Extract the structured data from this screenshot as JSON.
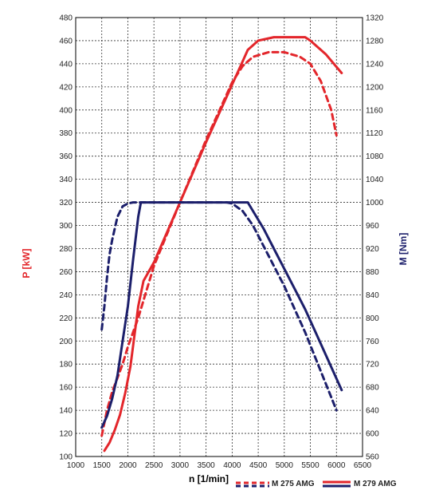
{
  "chart_data": {
    "type": "line",
    "xlabel": "n [1/min]",
    "ylabel_left": "P [kW]",
    "ylabel_right": "M [Nm]",
    "xlim": [
      1000,
      6500
    ],
    "ylim_left": [
      100,
      480
    ],
    "ylim_right": [
      560,
      1320
    ],
    "xticks": [
      1000,
      1500,
      2000,
      2500,
      3000,
      3500,
      4000,
      4500,
      5000,
      5500,
      6000,
      6500
    ],
    "yticks_left": [
      100,
      120,
      140,
      160,
      180,
      200,
      220,
      240,
      260,
      280,
      300,
      320,
      340,
      360,
      380,
      400,
      420,
      440,
      460,
      480
    ],
    "yticks_right": [
      560,
      600,
      640,
      680,
      720,
      760,
      800,
      840,
      880,
      920,
      960,
      1000,
      1040,
      1080,
      1120,
      1160,
      1200,
      1240,
      1280,
      1320
    ],
    "grid": true,
    "legend_position": "bottom-right",
    "colors": {
      "power": "#e3262b",
      "torque": "#1c1f6b"
    },
    "series": [
      {
        "name": "M 275 AMG",
        "quantity": "power",
        "axis": "left",
        "style": "dashed",
        "x": [
          1500,
          1600,
          1700,
          1800,
          1900,
          2000,
          2200,
          2500,
          3000,
          3500,
          4000,
          4200,
          4400,
          4700,
          5000,
          5300,
          5500,
          5700,
          5900,
          6000
        ],
        "y": [
          118,
          140,
          156,
          168,
          180,
          195,
          220,
          265,
          320,
          374,
          424,
          438,
          446,
          450,
          450,
          446,
          440,
          425,
          400,
          378
        ]
      },
      {
        "name": "M 279 AMG",
        "quantity": "power",
        "axis": "left",
        "style": "solid",
        "x": [
          1550,
          1650,
          1750,
          1850,
          1950,
          2050,
          2200,
          2300,
          2500,
          3000,
          3500,
          4000,
          4200,
          4300,
          4500,
          4800,
          5000,
          5400,
          5500,
          5800,
          6100
        ],
        "y": [
          105,
          112,
          123,
          136,
          155,
          178,
          230,
          252,
          268,
          320,
          372,
          422,
          442,
          452,
          460,
          463,
          463,
          463,
          460,
          448,
          432
        ]
      },
      {
        "name": "M 275 AMG",
        "quantity": "torque",
        "axis": "right",
        "style": "dashed",
        "x": [
          1500,
          1550,
          1600,
          1650,
          1700,
          1800,
          1900,
          2000,
          2100,
          2200,
          3000,
          3500,
          3900,
          4000,
          4200,
          4400,
          4600,
          4800,
          5000,
          5200,
          5400,
          5600,
          5800,
          6000
        ],
        "y": [
          780,
          820,
          870,
          910,
          935,
          975,
          993,
          998,
          1000,
          1000,
          1000,
          1000,
          1000,
          998,
          985,
          960,
          925,
          890,
          855,
          815,
          775,
          730,
          685,
          640
        ]
      },
      {
        "name": "M 279 AMG",
        "quantity": "torque",
        "axis": "right",
        "style": "solid",
        "x": [
          1500,
          1600,
          1700,
          1800,
          1900,
          2000,
          2100,
          2200,
          2250,
          3000,
          3500,
          4000,
          4300,
          4400,
          4600,
          4800,
          5000,
          5200,
          5400,
          5600,
          5800,
          6100
        ],
        "y": [
          610,
          630,
          660,
          700,
          760,
          820,
          900,
          975,
          1000,
          1000,
          1000,
          1000,
          1000,
          985,
          955,
          920,
          885,
          850,
          815,
          775,
          735,
          675
        ]
      }
    ]
  }
}
